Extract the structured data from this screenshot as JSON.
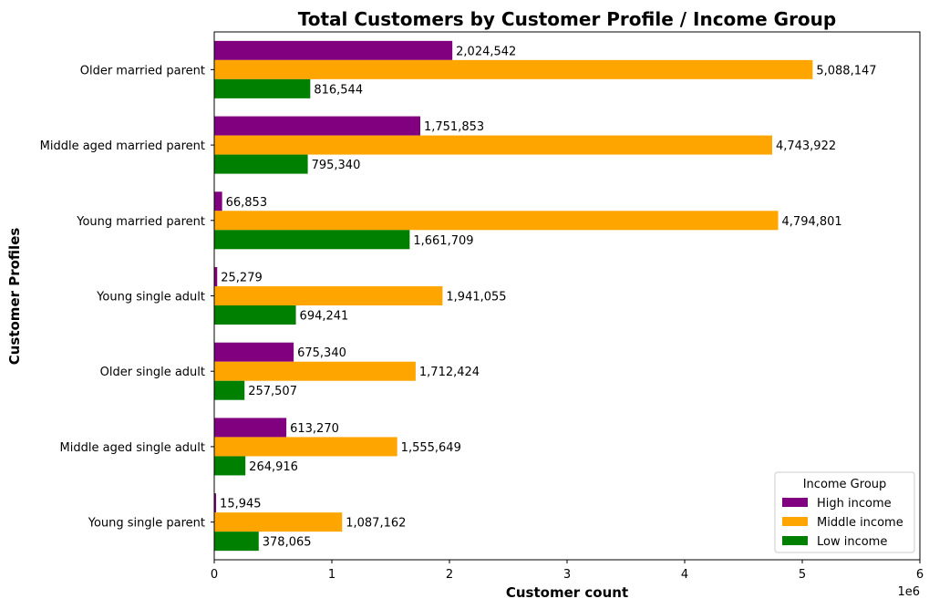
{
  "chart_data": {
    "type": "bar",
    "orientation": "horizontal",
    "title": "Total Customers by Customer Profile / Income Group",
    "xlabel": "Customer count",
    "ylabel": "Customer Profiles",
    "x_scale_note": "1e6",
    "xlim": [
      0,
      6000000
    ],
    "x_ticks": [
      0,
      1,
      2,
      3,
      4,
      5,
      6
    ],
    "categories": [
      "Older married parent",
      "Middle aged married parent",
      "Young married parent",
      "Young single adult",
      "Older single adult",
      "Middle aged single adult",
      "Young single parent"
    ],
    "series": [
      {
        "name": "High income",
        "color": "#800080",
        "values": [
          2024542,
          1751853,
          66853,
          25279,
          675340,
          613270,
          15945
        ],
        "labels": [
          "2,024,542",
          "1,751,853",
          "66,853",
          "25,279",
          "675,340",
          "613,270",
          "15,945"
        ]
      },
      {
        "name": "Middle income",
        "color": "#FFA500",
        "values": [
          5088147,
          4743922,
          4794801,
          1941055,
          1712424,
          1555649,
          1087162
        ],
        "labels": [
          "5,088,147",
          "4,743,922",
          "4,794,801",
          "1,941,055",
          "1,712,424",
          "1,555,649",
          "1,087,162"
        ]
      },
      {
        "name": "Low income",
        "color": "#008000",
        "values": [
          816544,
          795340,
          1661709,
          694241,
          257507,
          264916,
          378065
        ],
        "labels": [
          "816,544",
          "795,340",
          "1,661,709",
          "694,241",
          "257,507",
          "264,916",
          "378,065"
        ]
      }
    ],
    "legend": {
      "title": "Income Group",
      "placement": "lower-right"
    },
    "grid": false
  }
}
